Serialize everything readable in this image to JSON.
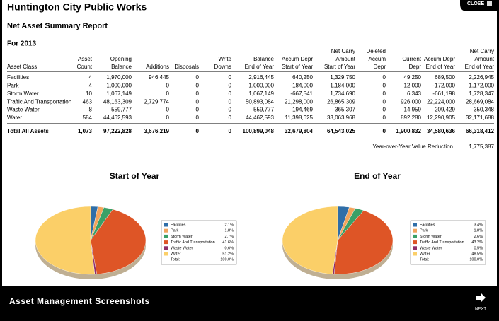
{
  "header": {
    "title": "Huntington City Public Works",
    "close": "CLOSE"
  },
  "report": {
    "title": "Net Asset Summary Report",
    "period": "For 2013",
    "columns": [
      [
        "Asset Class"
      ],
      [
        "Asset",
        "Count"
      ],
      [
        "Opening",
        "Balance"
      ],
      [
        "Additions"
      ],
      [
        "Disposals"
      ],
      [
        "Write",
        "Downs"
      ],
      [
        "Balance",
        "End of Year"
      ],
      [
        "Accum Depr",
        "Start of Year"
      ],
      [
        "Net Carry",
        "Amount",
        "Start of Year"
      ],
      [
        "Deleted",
        "Accum",
        "Depr"
      ],
      [
        "Current",
        "Depr"
      ],
      [
        "Accum Depr",
        "End of Year"
      ],
      [
        "Net Carry",
        "Amount",
        "End of Year"
      ]
    ],
    "rows": [
      [
        "Facilities",
        "4",
        "1,970,000",
        "946,445",
        "0",
        "0",
        "2,916,445",
        "640,250",
        "1,329,750",
        "0",
        "49,250",
        "689,500",
        "2,226,945"
      ],
      [
        "Park",
        "4",
        "1,000,000",
        "0",
        "0",
        "0",
        "1,000,000",
        "-184,000",
        "1,184,000",
        "0",
        "12,000",
        "-172,000",
        "1,172,000"
      ],
      [
        "Storm Water",
        "10",
        "1,067,149",
        "0",
        "0",
        "0",
        "1,067,149",
        "-667,541",
        "1,734,690",
        "0",
        "6,343",
        "-661,198",
        "1,728,347"
      ],
      [
        "Traffic And Transportation",
        "463",
        "48,163,309",
        "2,729,774",
        "0",
        "0",
        "50,893,084",
        "21,298,000",
        "26,865,309",
        "0",
        "926,000",
        "22,224,000",
        "28,669,084"
      ],
      [
        "Waste Water",
        "8",
        "559,777",
        "0",
        "0",
        "0",
        "559,777",
        "194,469",
        "365,307",
        "0",
        "14,959",
        "209,429",
        "350,348"
      ],
      [
        "Water",
        "584",
        "44,462,593",
        "0",
        "0",
        "0",
        "44,462,593",
        "11,398,625",
        "33,063,968",
        "0",
        "892,280",
        "12,290,905",
        "32,171,688"
      ]
    ],
    "total": [
      "Total All Assets",
      "1,073",
      "97,222,828",
      "3,676,219",
      "0",
      "0",
      "100,899,048",
      "32,679,804",
      "64,543,025",
      "0",
      "1,900,832",
      "34,580,636",
      "66,318,412"
    ],
    "reduction": {
      "label": "Year-over-Year Value Reduction",
      "value": "1,775,387"
    }
  },
  "chart_data": [
    {
      "type": "pie",
      "title": "Start of Year",
      "categories": [
        "Facilities",
        "Park",
        "Storm Water",
        "Traffic And Transportation",
        "Waste Water",
        "Water"
      ],
      "colors": [
        "#2f6ea8",
        "#f2a45c",
        "#3aa067",
        "#de5526",
        "#8e2f6a",
        "#fbcf68"
      ],
      "values": [
        2.1,
        1.8,
        2.7,
        41.6,
        0.6,
        51.2
      ],
      "value_labels": [
        "2.1%",
        "1.8%",
        "2.7%",
        "41.6%",
        "0.6%",
        "51.2%"
      ],
      "total": {
        "label": "Total:",
        "value": 100,
        "value_label": "100.0%"
      }
    },
    {
      "type": "pie",
      "title": "End of Year",
      "categories": [
        "Facilities",
        "Park",
        "Storm Water",
        "Traffic And Transportation",
        "Waste Water",
        "Water"
      ],
      "colors": [
        "#2f6ea8",
        "#f2a45c",
        "#3aa067",
        "#de5526",
        "#8e2f6a",
        "#fbcf68"
      ],
      "values": [
        3.4,
        1.8,
        2.6,
        43.2,
        0.5,
        48.5
      ],
      "value_labels": [
        "3.4%",
        "1.8%",
        "2.6%",
        "43.2%",
        "0.5%",
        "48.5%"
      ],
      "total": {
        "label": "Total:",
        "value": 100,
        "value_label": "100.0%"
      }
    }
  ],
  "footer": {
    "title": "Asset Management Screenshots",
    "next": "NEXT"
  }
}
